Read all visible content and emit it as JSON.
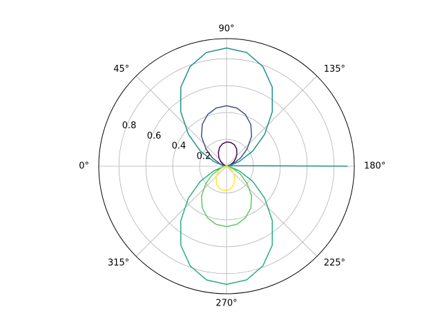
{
  "chart_data": {
    "type": "line",
    "projection": "polar",
    "theta_direction": "clockwise",
    "theta_zero_location": "W",
    "theta_tick_labels": [
      "0°",
      "45°",
      "90°",
      "135°",
      "180°",
      "225°",
      "270°",
      "315°"
    ],
    "r_tick_labels": [
      "0.2",
      "0.4",
      "0.6",
      "0.8"
    ],
    "r_ticks": [
      0.2,
      0.4,
      0.6,
      0.8
    ],
    "rlim": [
      0,
      0.95
    ],
    "grid": true,
    "legend": "none",
    "series": [
      {
        "color": "#440154",
        "theta_deg": [
          0,
          10,
          20,
          30,
          40,
          50,
          60,
          70,
          80,
          90,
          100,
          110,
          120,
          130,
          140,
          150,
          160,
          170,
          180
        ],
        "r": [
          0.0,
          0.001,
          0.01,
          0.03,
          0.06,
          0.09,
          0.12,
          0.15,
          0.17,
          0.18,
          0.18,
          0.17,
          0.15,
          0.12,
          0.09,
          0.06,
          0.03,
          0.01,
          0.0
        ]
      },
      {
        "color": "#3b528b",
        "theta_deg": [
          0,
          10,
          20,
          30,
          40,
          50,
          60,
          70,
          80,
          90,
          100,
          110,
          120,
          130,
          140,
          150,
          160,
          170,
          180
        ],
        "r": [
          0.0,
          0.012,
          0.05,
          0.12,
          0.2,
          0.29,
          0.36,
          0.41,
          0.44,
          0.45,
          0.44,
          0.41,
          0.36,
          0.29,
          0.2,
          0.12,
          0.05,
          0.012,
          0.0
        ]
      },
      {
        "color": "#21918c",
        "theta_deg": [
          0,
          10,
          20,
          30,
          40,
          50,
          60,
          70,
          80,
          90,
          100,
          110,
          120,
          130,
          140,
          150,
          160,
          170,
          180
        ],
        "r": [
          0.0,
          0.025,
          0.1,
          0.225,
          0.37,
          0.53,
          0.68,
          0.79,
          0.86,
          0.88,
          0.86,
          0.79,
          0.68,
          0.53,
          0.37,
          0.225,
          0.1,
          0.025,
          0.9
        ]
      },
      {
        "color": "#27ad81",
        "theta_deg": [
          180,
          190,
          200,
          210,
          220,
          230,
          240,
          250,
          260,
          270,
          280,
          290,
          300,
          310,
          320,
          330,
          340,
          350,
          360
        ],
        "r": [
          0.0,
          0.025,
          0.1,
          0.225,
          0.37,
          0.53,
          0.68,
          0.79,
          0.86,
          0.88,
          0.86,
          0.79,
          0.68,
          0.53,
          0.37,
          0.225,
          0.1,
          0.025,
          0.0
        ]
      },
      {
        "color": "#5ec962",
        "theta_deg": [
          180,
          190,
          200,
          210,
          220,
          230,
          240,
          250,
          260,
          270,
          280,
          290,
          300,
          310,
          320,
          330,
          340,
          350,
          360
        ],
        "r": [
          0.0,
          0.012,
          0.05,
          0.12,
          0.2,
          0.29,
          0.36,
          0.41,
          0.44,
          0.45,
          0.44,
          0.41,
          0.36,
          0.29,
          0.2,
          0.12,
          0.05,
          0.012,
          0.0
        ]
      },
      {
        "color": "#fde725",
        "theta_deg": [
          180,
          190,
          200,
          210,
          220,
          230,
          240,
          250,
          260,
          270,
          280,
          290,
          300,
          310,
          320,
          330,
          340,
          350,
          360
        ],
        "r": [
          0.0,
          0.001,
          0.01,
          0.03,
          0.06,
          0.09,
          0.12,
          0.15,
          0.17,
          0.18,
          0.18,
          0.17,
          0.15,
          0.12,
          0.09,
          0.06,
          0.03,
          0.01,
          0.0
        ]
      }
    ]
  }
}
